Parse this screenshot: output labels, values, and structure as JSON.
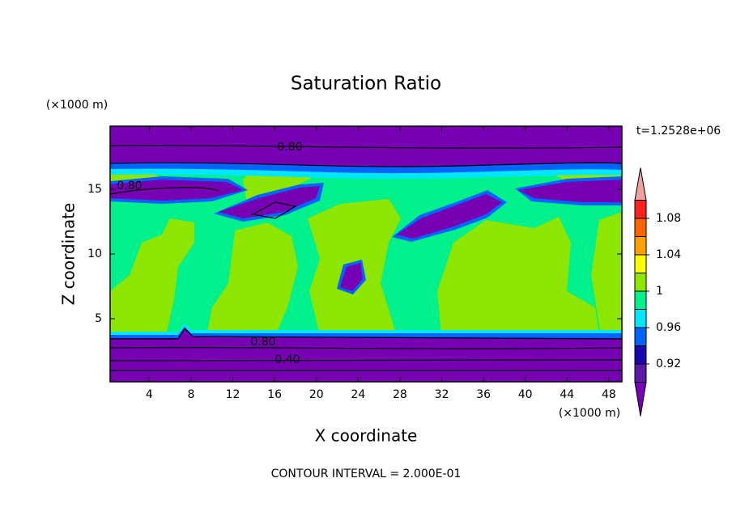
{
  "chart_data": {
    "type": "contour",
    "title": "Saturation Ratio",
    "xlabel": "X coordinate",
    "ylabel": "Z coordinate",
    "x_unit": "(×1000 m)",
    "y_unit": "(×1000 m)",
    "time_label": "t=1.2528e+06",
    "footer": "CONTOUR INTERVAL = 2.000E-01",
    "contour_labels": [
      "0.80",
      "0.80",
      "0.80",
      "0.40"
    ],
    "xlim": [
      0.25,
      49.25
    ],
    "xticks": [
      4,
      8,
      12,
      16,
      20,
      24,
      28,
      32,
      36,
      40,
      44,
      48
    ],
    "ylim": [
      0.125,
      19.875
    ],
    "yticks": [
      5,
      10,
      15
    ],
    "colorbar_lim": [
      0.9,
      1.1
    ],
    "colorbar_ticks": [
      0.92,
      0.96,
      1,
      1.04,
      1.08
    ],
    "colors": [
      "#7800b4",
      "#5a1aa8",
      "#1a08b0",
      "#0064ff",
      "#00e6ff",
      "#00f08c",
      "#8ce600",
      "#ffff00",
      "#ffa000",
      "#ff6400",
      "#ff2020",
      "#f0a0a0"
    ]
  }
}
